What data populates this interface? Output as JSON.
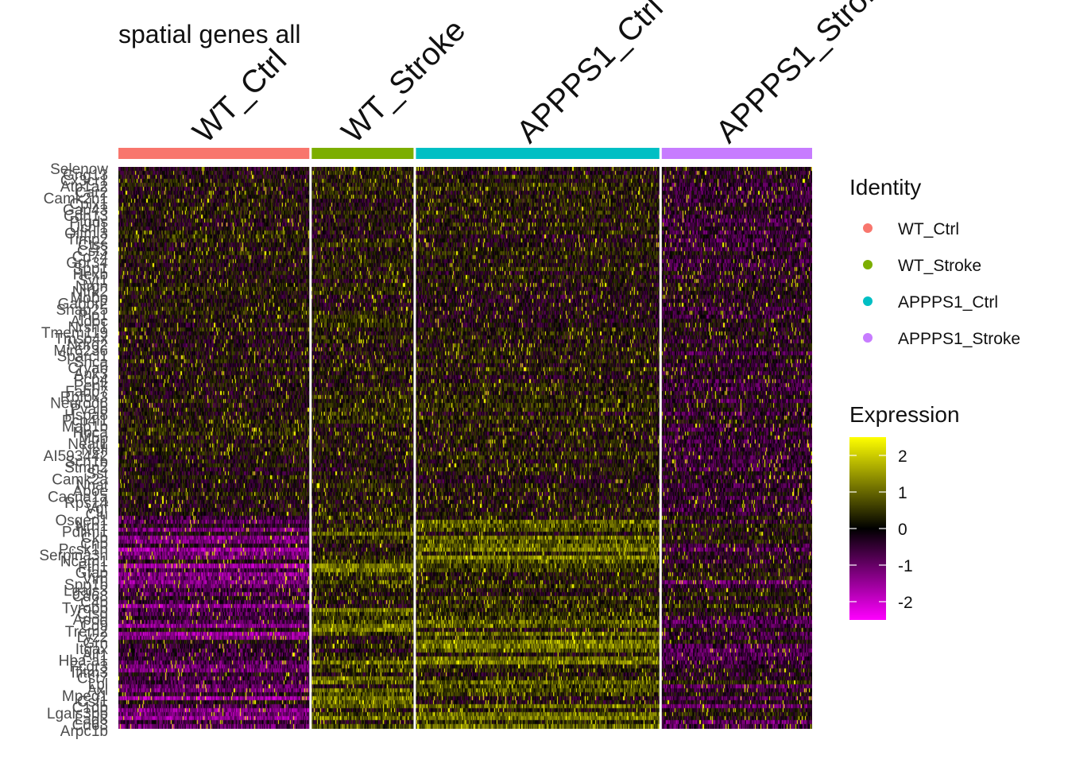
{
  "chart_data": {
    "type": "heatmap",
    "title": "spatial genes all",
    "groups": [
      {
        "name": "WT_Ctrl",
        "color": "#F8766D",
        "cells": 240
      },
      {
        "name": "WT_Stroke",
        "color": "#7CAE00",
        "cells": 128
      },
      {
        "name": "APPPS1_Ctrl",
        "color": "#00BFC4",
        "cells": 306
      },
      {
        "name": "APPPS1_Stroke",
        "color": "#C77CFF",
        "cells": 189
      }
    ],
    "genes": [
      "Selenow",
      "Gng13",
      "Cx3cr1",
      "Atp1a2",
      "Car2",
      "Camk2n1",
      "Cplx1",
      "Gap43",
      "Cdh13",
      "Ptgds",
      "Uchl1",
      "Olfml3",
      "Timp2",
      "Ctss",
      "Cst3",
      "Cd74",
      "Gpr34",
      "Spp1",
      "Hexb",
      "Syt1",
      "Nrgn",
      "Ntrk2",
      "Mobp",
      "Gabbr2",
      "Snap25",
      "Plp1",
      "Aldoc",
      "Nrsn1",
      "Tmem119",
      "Tmsb4x",
      "Ndrg2",
      "Mir6236",
      "Sparcl1",
      "Snca",
      "Cryab",
      "Ank3",
      "Pcp4",
      "Penk",
      "Fabp7",
      "Rbfox3",
      "Neurod6",
      "Pvalb",
      "Hspa8",
      "Pcp4l1",
      "Map1b",
      "Hpca",
      "Mbp",
      "Neat1",
      "Nefl",
      "AI593442",
      "Scn1b",
      "Stmn2",
      "Sst",
      "Camk2a",
      "Nnat",
      "Apoe",
      "Cacna1a",
      "Rps14",
      "Vgf",
      "Clu",
      "Osgep1",
      "Nrn1",
      "Pdlim1",
      "Ckb",
      "Cnp",
      "Pcsk1n",
      "Serpina3n",
      "Ncam1",
      "Fth1",
      "Gfap",
      "Vim",
      "Spp1b",
      "Lgals3",
      "Cd68",
      "C4b",
      "Tyrobp",
      "Ctsd",
      "Apod",
      "Cd9",
      "Trem2",
      "Lyz2",
      "Grn",
      "Itgax",
      "Aif1",
      "Hba-a1",
      "Fcgr3",
      "Ifitm3",
      "Cst7",
      "Lpl",
      "Axl",
      "Mpeg1",
      "Csf1",
      "C1qb",
      "Lgals3bp",
      "Lag3",
      "Cd63",
      "Arpc1b"
    ],
    "color_scale": {
      "label": "Expression",
      "ticks": [
        2,
        1,
        0,
        -1,
        -2
      ],
      "low": "#FF00FF",
      "mid": "#000000",
      "high": "#FFFF00",
      "range": [
        -2.5,
        2.5
      ]
    },
    "legend": {
      "title": "Identity",
      "placement": "right",
      "entries": [
        "WT_Ctrl",
        "WT_Stroke",
        "APPPS1_Ctrl",
        "APPPS1_Stroke"
      ]
    }
  }
}
